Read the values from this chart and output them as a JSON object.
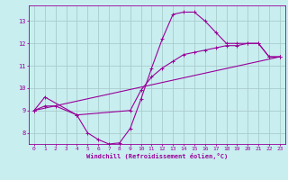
{
  "title": "",
  "xlabel": "Windchill (Refroidissement éolien,°C)",
  "ylabel": "",
  "bg_color": "#c8eef0",
  "line_color": "#990099",
  "grid_color": "#aacccc",
  "xlim": [
    -0.5,
    23.5
  ],
  "ylim": [
    7.5,
    13.7
  ],
  "yticks": [
    8,
    9,
    10,
    11,
    12,
    13
  ],
  "xticks": [
    0,
    1,
    2,
    3,
    4,
    5,
    6,
    7,
    8,
    9,
    10,
    11,
    12,
    13,
    14,
    15,
    16,
    17,
    18,
    19,
    20,
    21,
    22,
    23
  ],
  "line1_x": [
    0,
    1,
    2,
    4,
    5,
    6,
    7,
    8,
    9,
    10,
    11,
    12,
    13,
    14,
    15,
    16,
    17,
    18,
    19,
    20,
    21,
    22,
    23
  ],
  "line1_y": [
    9.0,
    9.2,
    9.2,
    8.8,
    8.0,
    7.7,
    7.5,
    7.55,
    8.2,
    9.5,
    10.9,
    12.2,
    13.3,
    13.4,
    13.4,
    13.0,
    12.5,
    12.0,
    12.0,
    12.0,
    12.0,
    11.4,
    11.4
  ],
  "line2_x": [
    0,
    1,
    4,
    9,
    10,
    11,
    12,
    13,
    14,
    15,
    16,
    17,
    18,
    19,
    20,
    21,
    22,
    23
  ],
  "line2_y": [
    9.0,
    9.6,
    8.8,
    9.0,
    9.9,
    10.5,
    10.9,
    11.2,
    11.5,
    11.6,
    11.7,
    11.8,
    11.9,
    11.9,
    12.0,
    12.0,
    11.4,
    11.4
  ],
  "line3_x": [
    0,
    23
  ],
  "line3_y": [
    9.0,
    11.4
  ]
}
